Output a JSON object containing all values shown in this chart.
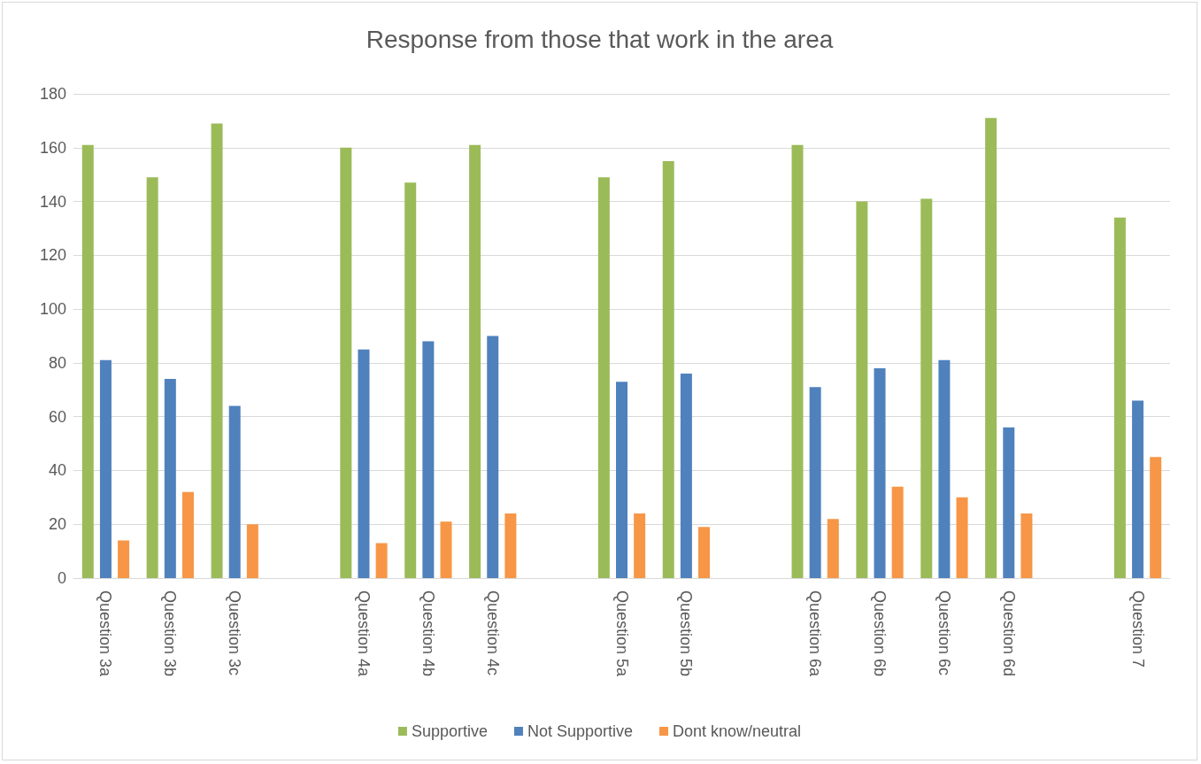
{
  "chart_data": {
    "type": "bar",
    "title": "Response from those that work in the area",
    "categories": [
      "Question 3a",
      "Question 3b",
      "Question 3c",
      null,
      "Question 4a",
      "Question 4b",
      "Question 4c",
      null,
      "Question 5a",
      "Question 5b",
      null,
      "Question 6a",
      "Question 6b",
      "Question 6c",
      "Question 6d",
      null,
      "Question 7"
    ],
    "series": [
      {
        "name": "Supportive",
        "color": "#9bbb59",
        "values": [
          161,
          149,
          169,
          null,
          160,
          147,
          161,
          null,
          149,
          155,
          null,
          161,
          140,
          141,
          171,
          null,
          134
        ]
      },
      {
        "name": "Not Supportive",
        "color": "#4f81bd",
        "values": [
          81,
          74,
          64,
          null,
          85,
          88,
          90,
          null,
          73,
          76,
          null,
          71,
          78,
          81,
          56,
          null,
          66
        ]
      },
      {
        "name": "Dont know/neutral",
        "color": "#f79646",
        "values": [
          14,
          32,
          20,
          null,
          13,
          21,
          24,
          null,
          24,
          19,
          null,
          22,
          34,
          30,
          24,
          null,
          45
        ]
      }
    ],
    "ylim": [
      0,
      180
    ],
    "yticks": [
      0,
      20,
      40,
      60,
      80,
      100,
      120,
      140,
      160,
      180
    ],
    "grid": "y",
    "legend": "bottom"
  }
}
